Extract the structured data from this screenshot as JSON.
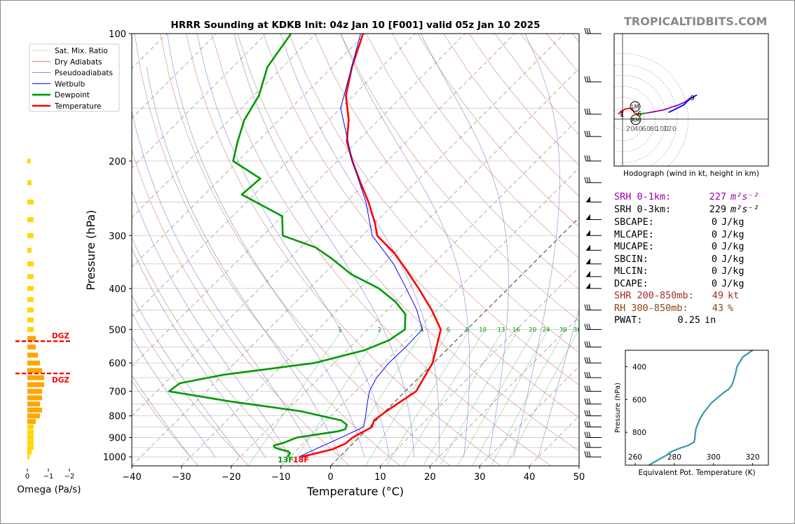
{
  "brand": "TROPICALTIDBITS.COM",
  "colors": {
    "temperature": "#ff0000",
    "dewpoint": "#009900",
    "wetbulb": "#0000ff",
    "dry_adiabat": "#cc6666",
    "moist_adiabat": "#6666cc",
    "mixing_ratio": "#009900",
    "omega_bar": "#ffa500",
    "omega_bar_weak": "#ffd700",
    "dgz": "#ff0000",
    "theta_e": "#3399aa",
    "srh1": "#9900aa",
    "rh": "#8b4513"
  },
  "chart_data": [
    {
      "type": "line",
      "id": "skewt",
      "title": "HRRR Sounding at KDKB Init: 04z Jan 10 [F001] valid 05z Jan 10 2025",
      "xlabel": "Temperature (°C)",
      "ylabel": "Pressure (hPa)",
      "xlim": [
        -40,
        50
      ],
      "ylim": [
        1050,
        100
      ],
      "y_scale": "log",
      "skew": "45°",
      "x_ticks": [
        "−40",
        "−30",
        "−20",
        "−10",
        "0",
        "10",
        "20",
        "30",
        "40",
        "50"
      ],
      "x_tick_values": [
        -40,
        -30,
        -20,
        -10,
        0,
        10,
        20,
        30,
        40,
        50
      ],
      "y_ticks": [
        "100",
        "200",
        "300",
        "400",
        "500",
        "600",
        "700",
        "800",
        "900",
        "1000"
      ],
      "y_tick_values": [
        100,
        200,
        300,
        400,
        500,
        600,
        700,
        800,
        900,
        1000
      ],
      "legend": [
        "Sat. Mix. Ratio",
        "Dry Adiabats",
        "Pseudoadiabats",
        "Wetbulb",
        "Dewpoint",
        "Temperature"
      ],
      "legend_position": "top-left",
      "mixing_ratio_labels": [
        "1",
        "2",
        "4",
        "6",
        "8",
        "10",
        "13",
        "16",
        "20",
        "24",
        "30",
        "36"
      ],
      "mixing_ratio_values": [
        1,
        2,
        4,
        6,
        8,
        10,
        13,
        16,
        20,
        24,
        30,
        36
      ],
      "surface_labels": {
        "dewpoint": "13F",
        "temperature": "18F"
      },
      "series": [
        {
          "name": "Temperature",
          "p": [
            1000,
            960,
            930,
            900,
            850,
            820,
            780,
            700,
            600,
            500,
            450,
            400,
            360,
            330,
            300,
            280,
            250,
            225,
            200,
            180,
            160,
            140,
            120,
            100
          ],
          "t": [
            -7.7,
            -3,
            -1.5,
            -1.3,
            0.5,
            -0.4,
            0.2,
            2.2,
            -0.2,
            -5.3,
            -11,
            -18,
            -24.5,
            -30,
            -37,
            -40,
            -45.5,
            -51,
            -57,
            -62,
            -66,
            -71.5,
            -76,
            -80.5
          ]
        },
        {
          "name": "Dewpoint",
          "p": [
            1000,
            980,
            970,
            960,
            950,
            940,
            925,
            900,
            870,
            860,
            840,
            820,
            780,
            740,
            700,
            670,
            640,
            600,
            560,
            530,
            500,
            460,
            430,
            400,
            370,
            340,
            320,
            300,
            270,
            240,
            220,
            200,
            180,
            160,
            140,
            120,
            100
          ],
          "t": [
            -10.5,
            -10.7,
            -11.5,
            -13.5,
            -15,
            -15.5,
            -14,
            -12.5,
            -5.5,
            -4.4,
            -5,
            -7,
            -17,
            -33,
            -47.5,
            -47,
            -40,
            -24,
            -16.5,
            -13.5,
            -12.5,
            -15.5,
            -20,
            -26,
            -34.5,
            -41.5,
            -47,
            -56,
            -60,
            -72.5,
            -72,
            -81,
            -84,
            -87,
            -89,
            -93,
            -95
          ]
        },
        {
          "name": "Wetbulb",
          "p": [
            1000,
            950,
            900,
            850,
            800,
            750,
            700,
            650,
            600,
            550,
            500,
            450,
            400,
            350,
            300,
            250,
            200,
            150,
            100
          ],
          "t": [
            -8.2,
            -6,
            -3.6,
            -1.2,
            -3,
            -5.1,
            -7.2,
            -8.5,
            -9,
            -8.8,
            -9,
            -14,
            -20.5,
            -28,
            -38,
            -46,
            -57,
            -70,
            -81
          ]
        },
        {
          "name": "Omega (Pa/s)",
          "p": [
            1000,
            975,
            950,
            925,
            900,
            875,
            850,
            825,
            800,
            775,
            750,
            725,
            700,
            675,
            650,
            625,
            600,
            575,
            550,
            525,
            500,
            475,
            450,
            425,
            400,
            375,
            350,
            325,
            300,
            275,
            250,
            225,
            200
          ],
          "omega": [
            -0.1,
            -0.2,
            -0.3,
            -0.3,
            -0.3,
            -0.3,
            -0.3,
            -0.4,
            -0.6,
            -0.7,
            -0.6,
            -0.7,
            -0.7,
            -0.8,
            -0.8,
            -0.7,
            -0.6,
            -0.5,
            -0.4,
            -0.4,
            -0.3,
            -0.3,
            -0.3,
            -0.3,
            -0.3,
            -0.3,
            -0.3,
            -0.2,
            -0.3,
            -0.3,
            -0.3,
            -0.2,
            -0.15
          ]
        }
      ],
      "omega_label": "Omega (Pa/s)",
      "omega_ticks": [
        "0",
        "−1",
        "−2"
      ],
      "omega_tick_values": [
        0,
        -1,
        -2
      ],
      "dgz_label": "DGZ",
      "dgz_pressures": [
        533,
        635
      ]
    },
    {
      "type": "line",
      "id": "hodograph",
      "title": "Hodograph (wind in kt, height in km)",
      "ring_labels": [
        "20",
        "40",
        "60",
        "80",
        "100",
        "120"
      ],
      "ring_values": [
        20,
        40,
        60,
        80,
        100,
        120
      ],
      "markers": [
        "LM",
        "RM"
      ],
      "height_labels": [
        "2",
        "1",
        "6",
        "9"
      ],
      "series": [
        {
          "name": "0-1 km",
          "color": "#ff0000",
          "points": [
            [
              -8,
              9
            ],
            [
              -4,
              13
            ],
            [
              4,
              18
            ],
            [
              12,
              20
            ],
            [
              18,
              18
            ],
            [
              22,
              11
            ],
            [
              28,
              9
            ]
          ]
        },
        {
          "name": "1-3 km",
          "color": "#009900",
          "points": [
            [
              28,
              9
            ],
            [
              36,
              10
            ],
            [
              44,
              11
            ]
          ]
        },
        {
          "name": "3-6 km",
          "color": "#9900aa",
          "points": [
            [
              44,
              11
            ],
            [
              60,
              14
            ],
            [
              76,
              17
            ],
            [
              90,
              22
            ],
            [
              100,
              25
            ],
            [
              114,
              31
            ],
            [
              122,
              37
            ],
            [
              126,
              40
            ]
          ]
        },
        {
          "name": "6-9 km",
          "color": "#0000ff",
          "points": [
            [
              84,
              12
            ],
            [
              100,
              20
            ],
            [
              112,
              26
            ],
            [
              120,
              34
            ],
            [
              128,
              40
            ],
            [
              136,
              44
            ]
          ]
        }
      ],
      "storm_motion": {
        "LM": [
          23,
          23
        ],
        "RM": [
          24,
          -1
        ]
      }
    },
    {
      "type": "line",
      "id": "theta_e",
      "xlabel": "Equivalent Pot. Temperature (K)",
      "ylabel": "Pressure (hPa)",
      "xlim": [
        255,
        328
      ],
      "ylim": [
        1000,
        300
      ],
      "x_ticks": [
        "260",
        "280",
        "300",
        "320"
      ],
      "x_tick_values": [
        260,
        280,
        300,
        320
      ],
      "y_ticks": [
        "400",
        "600",
        "800"
      ],
      "y_tick_values": [
        400,
        600,
        800
      ],
      "series": [
        {
          "name": "theta-e",
          "p": [
            1000,
            980,
            960,
            940,
            920,
            900,
            880,
            860,
            840,
            820,
            800,
            780,
            750,
            720,
            700,
            680,
            650,
            620,
            600,
            580,
            560,
            540,
            520,
            500,
            480,
            460,
            440,
            420,
            400,
            380,
            360,
            340,
            320,
            300
          ],
          "theta": [
            267,
            270,
            273,
            276,
            278,
            282,
            287,
            290,
            290.5,
            290.5,
            290.8,
            291,
            292,
            293,
            294,
            295,
            297,
            299,
            301,
            303,
            305,
            307.5,
            309,
            309.8,
            310.3,
            310.8,
            311.3,
            311.6,
            312,
            313,
            314,
            315,
            317.5,
            320
          ]
        }
      ]
    }
  ],
  "stats": [
    {
      "label": "SRH 0-1km:",
      "value": "227",
      "unit": "m²s⁻²",
      "color": "#9900aa"
    },
    {
      "label": "SRH 0-3km:",
      "value": "229",
      "unit": "m²s⁻²",
      "color": "#000000"
    },
    {
      "label": "SBCAPE:",
      "value": "0",
      "unit": "J/kg",
      "color": "#000000"
    },
    {
      "label": "MLCAPE:",
      "value": "0",
      "unit": "J/kg",
      "color": "#000000"
    },
    {
      "label": "MUCAPE:",
      "value": "0",
      "unit": "J/kg",
      "color": "#000000"
    },
    {
      "label": "SBCIN:",
      "value": "0",
      "unit": "J/kg",
      "color": "#000000"
    },
    {
      "label": "MLCIN:",
      "value": "0",
      "unit": "J/kg",
      "color": "#000000"
    },
    {
      "label": "DCAPE:",
      "value": "0",
      "unit": "J/kg",
      "color": "#000000"
    },
    {
      "label": "SHR 200-850mb:",
      "value": "49",
      "unit": "kt",
      "color": "#a52a2a"
    },
    {
      "label": "RH 300-850mb:",
      "value": "43",
      "unit": "%",
      "color": "#8b4513"
    },
    {
      "label": "PWAT:",
      "value": "0.25",
      "unit": "in",
      "color": "#000000"
    }
  ]
}
